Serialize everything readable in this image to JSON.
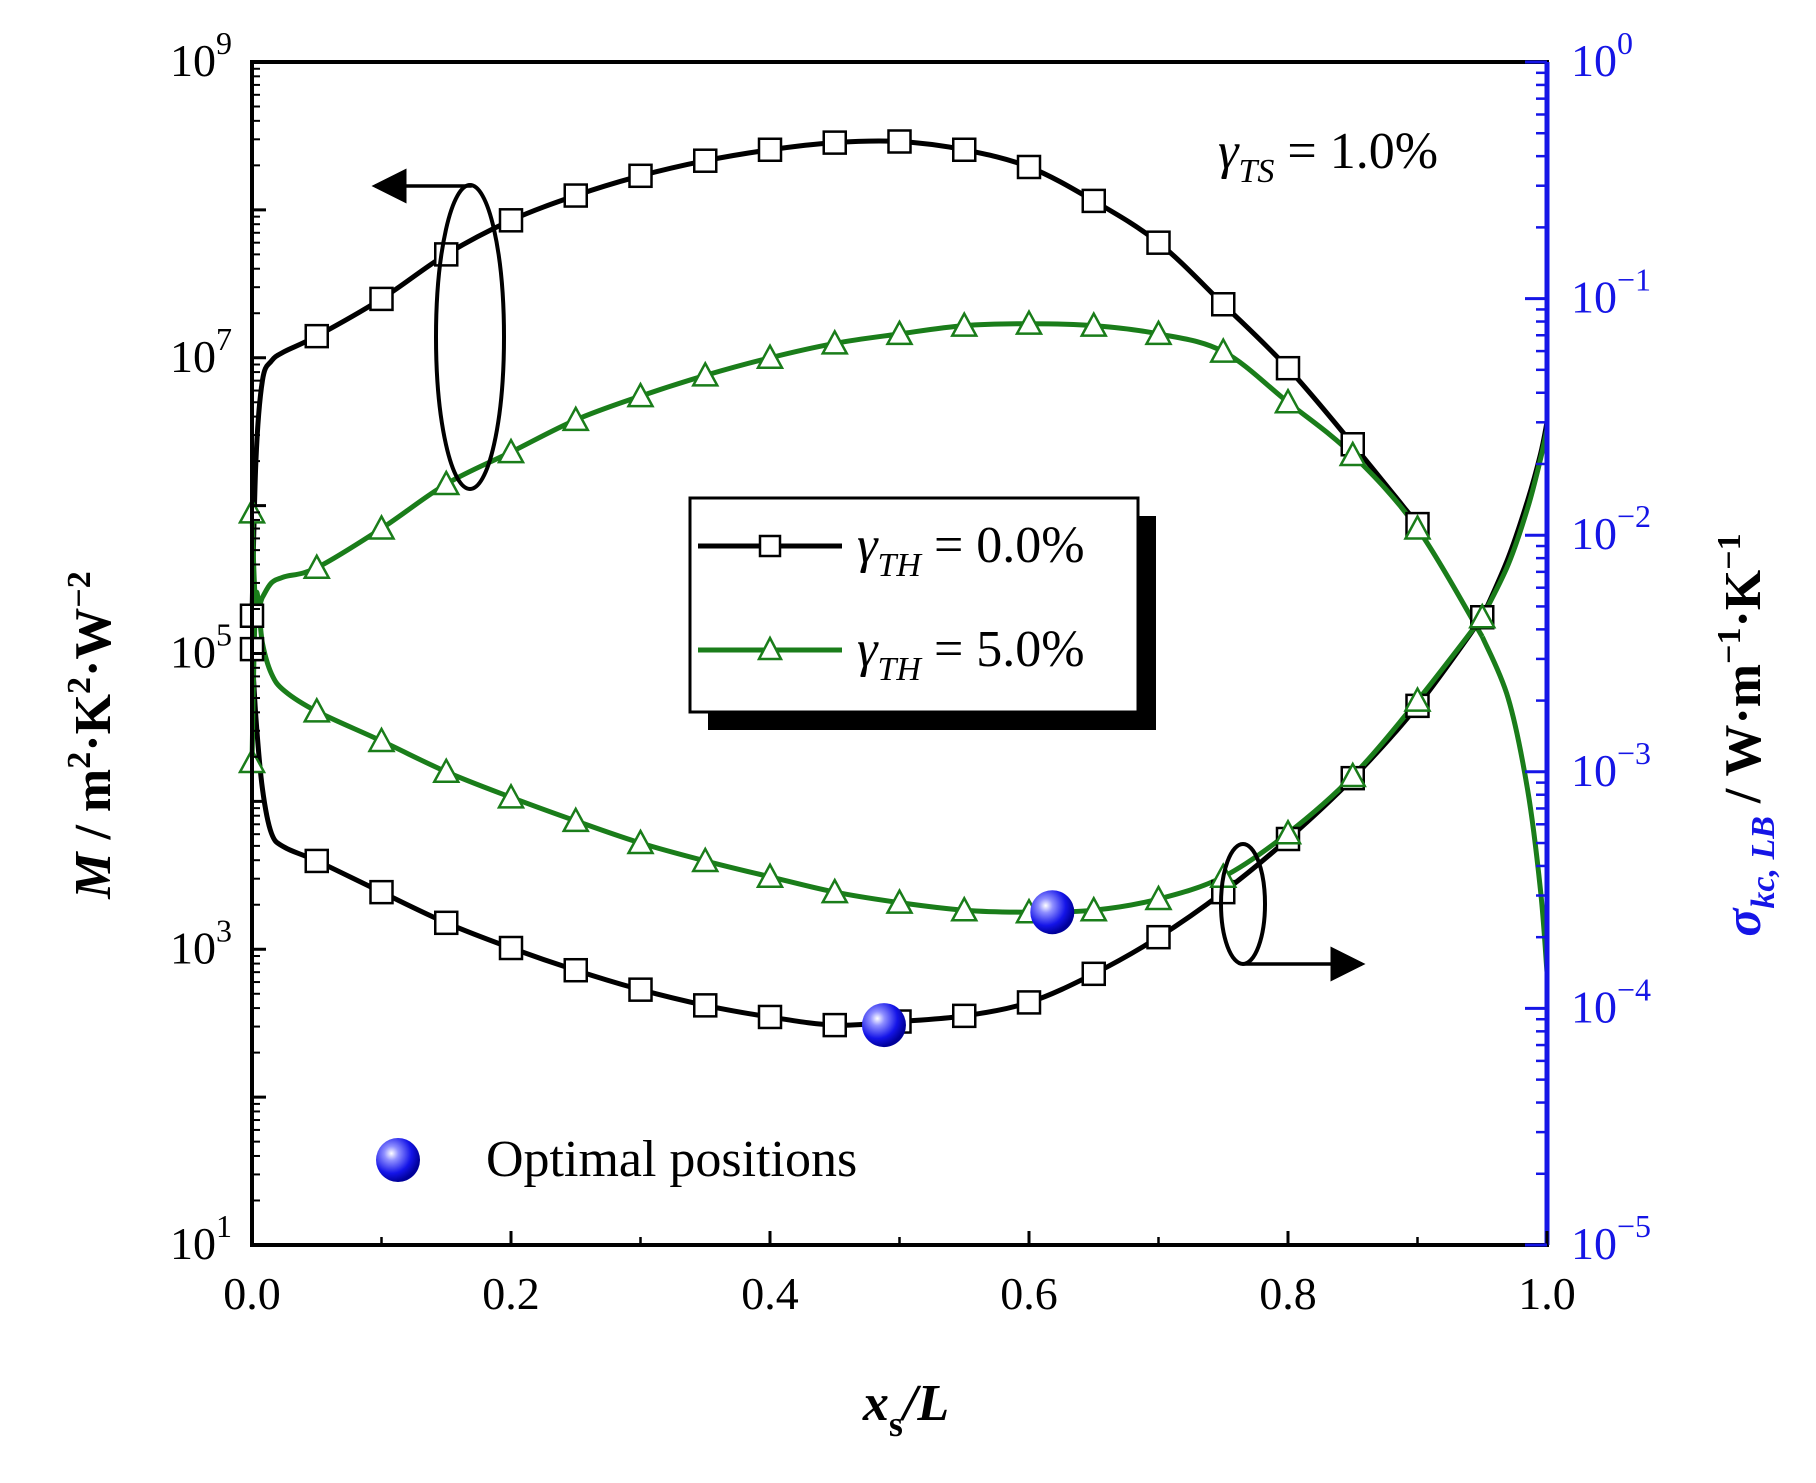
{
  "chart_data": {
    "type": "line",
    "x_title": {
      "var": "x",
      "sub": "s",
      "tail": "/L"
    },
    "y_left_title": {
      "var": "M",
      "unit": " / m",
      "sup1": "2",
      "mid": "·K",
      "sup2": "2",
      "mid2": "·W",
      "sup3": "−2"
    },
    "y_right_title": {
      "var": "σ",
      "sub": "kc, LB",
      "unit": " / W·m",
      "sup1": "−1",
      "mid": "·K",
      "sup2": "−1"
    },
    "xlim": [
      0.0,
      1.0
    ],
    "ylim_left": [
      10,
      1000000000
    ],
    "ylim_right": [
      1e-05,
      1
    ],
    "x_ticks": [
      {
        "v": 0.0,
        "label": "0.0"
      },
      {
        "v": 0.2,
        "label": "0.2"
      },
      {
        "v": 0.4,
        "label": "0.4"
      },
      {
        "v": 0.6,
        "label": "0.6"
      },
      {
        "v": 0.8,
        "label": "0.8"
      },
      {
        "v": 1.0,
        "label": "1.0"
      }
    ],
    "y_left_ticks": [
      {
        "v": 10,
        "base": "10",
        "exp": "1"
      },
      {
        "v": 1000,
        "base": "10",
        "exp": "3"
      },
      {
        "v": 100000,
        "base": "10",
        "exp": "5"
      },
      {
        "v": 10000000,
        "base": "10",
        "exp": "7"
      },
      {
        "v": 1000000000,
        "base": "10",
        "exp": "9"
      }
    ],
    "y_right_ticks": [
      {
        "v": 1e-05,
        "base": "10",
        "exp": "−5"
      },
      {
        "v": 0.0001,
        "base": "10",
        "exp": "−4"
      },
      {
        "v": 0.001,
        "base": "10",
        "exp": "−3"
      },
      {
        "v": 0.01,
        "base": "10",
        "exp": "−2"
      },
      {
        "v": 0.1,
        "base": "10",
        "exp": "−1"
      },
      {
        "v": 1,
        "base": "10",
        "exp": "0"
      }
    ],
    "annotation": {
      "var": "γ",
      "sub": "TS",
      "text": " = 1.0%"
    },
    "series": [
      {
        "name": "γTH = 0.0%",
        "legend_var": "γ",
        "legend_sub": "TH",
        "legend_text": " = 0.0%",
        "axis": "left",
        "color": "#000000",
        "marker": "square",
        "x": [
          0.0,
          0.003,
          0.008,
          0.015,
          0.025,
          0.05,
          0.1,
          0.15,
          0.2,
          0.25,
          0.3,
          0.35,
          0.4,
          0.45,
          0.5,
          0.55,
          0.6,
          0.65,
          0.7,
          0.75,
          0.8,
          0.85,
          0.9
        ],
        "y": [
          180000,
          2000000,
          7000000,
          9500000,
          11000000,
          14000000,
          25000000,
          50000000,
          85000000,
          125000000,
          170000000,
          215000000,
          255000000,
          285000000,
          290000000,
          255000000,
          195000000,
          115000000,
          60000000,
          23000000,
          8500000,
          2600000,
          750000
        ],
        "marker_x": [
          0.0,
          0.05,
          0.1,
          0.15,
          0.2,
          0.25,
          0.3,
          0.35,
          0.4,
          0.45,
          0.5,
          0.55,
          0.6,
          0.65,
          0.7,
          0.75,
          0.8,
          0.85,
          0.9
        ]
      },
      {
        "name": "γTH = 5.0%",
        "axis": "left",
        "color": "#1a7d1a",
        "marker": "triangle",
        "legend": false,
        "x": [
          0.0,
          0.003,
          0.008,
          0.015,
          0.025,
          0.05,
          0.1,
          0.15,
          0.2,
          0.25,
          0.3,
          0.35,
          0.4,
          0.45,
          0.5,
          0.55,
          0.6,
          0.65,
          0.7,
          0.75,
          0.8,
          0.85,
          0.9,
          0.95
        ],
        "y": [
          900000,
          200000,
          240000,
          300000,
          330000,
          380000,
          700000,
          1400000,
          2300000,
          3800000,
          5500000,
          7600000,
          10000000,
          12500000,
          14500000,
          16500000,
          17000000,
          16500000,
          14500000,
          11000000,
          5000000,
          2200000,
          700000,
          130000
        ],
        "marker_x": [
          0.0,
          0.05,
          0.1,
          0.15,
          0.2,
          0.25,
          0.3,
          0.35,
          0.4,
          0.45,
          0.5,
          0.55,
          0.6,
          0.65,
          0.7,
          0.75,
          0.8,
          0.85,
          0.9
        ]
      },
      {
        "name": "σ γTH = 0.0%",
        "axis": "right",
        "color": "#000000",
        "marker": "square",
        "legend": false,
        "x": [
          0.0,
          0.003,
          0.008,
          0.015,
          0.025,
          0.05,
          0.1,
          0.15,
          0.2,
          0.25,
          0.3,
          0.35,
          0.4,
          0.45,
          0.5,
          0.55,
          0.6,
          0.65,
          0.7,
          0.75,
          0.8,
          0.85,
          0.9,
          0.95
        ],
        "y": [
          0.0033,
          0.0017,
          0.00085,
          0.00055,
          0.00048,
          0.00042,
          0.00031,
          0.00023,
          0.00018,
          0.000145,
          0.00012,
          0.000103,
          9.2e-05,
          8.5e-05,
          8.8e-05,
          9.3e-05,
          0.000106,
          0.00014,
          0.0002,
          0.00031,
          0.00052,
          0.00094,
          0.0019,
          0.0045
        ],
        "marker_x": [
          0.0,
          0.05,
          0.1,
          0.15,
          0.2,
          0.25,
          0.3,
          0.35,
          0.4,
          0.45,
          0.5,
          0.55,
          0.6,
          0.65,
          0.7,
          0.75,
          0.8,
          0.85,
          0.9,
          0.95
        ]
      },
      {
        "name": "σ γTH = 5.0%",
        "legend_var": "γ",
        "legend_sub": "TH",
        "legend_text": " = 5.0%",
        "axis": "right",
        "color": "#1a7d1a",
        "marker": "triangle",
        "x": [
          0.0,
          0.003,
          0.008,
          0.015,
          0.025,
          0.05,
          0.1,
          0.15,
          0.2,
          0.25,
          0.3,
          0.35,
          0.4,
          0.45,
          0.5,
          0.55,
          0.6,
          0.65,
          0.7,
          0.75,
          0.8,
          0.85,
          0.9,
          0.95
        ],
        "y": [
          0.0011,
          0.0055,
          0.0035,
          0.0026,
          0.0022,
          0.0018,
          0.00135,
          0.001,
          0.00078,
          0.00062,
          0.0005,
          0.00042,
          0.00036,
          0.00031,
          0.00028,
          0.00026,
          0.000255,
          0.00026,
          0.00029,
          0.00036,
          0.00055,
          0.00096,
          0.002,
          0.0045
        ],
        "marker_x": [
          0.0,
          0.05,
          0.1,
          0.15,
          0.2,
          0.25,
          0.3,
          0.35,
          0.4,
          0.45,
          0.5,
          0.55,
          0.6,
          0.65,
          0.7,
          0.75,
          0.8,
          0.85,
          0.9,
          0.95
        ]
      }
    ],
    "tails": [
      {
        "name": "σ γTH = 0.0% tail",
        "axis": "right",
        "color": "#000000",
        "x": [
          0.95,
          0.97,
          0.985,
          0.995,
          1.0
        ],
        "y": [
          0.0045,
          0.008,
          0.014,
          0.022,
          0.03
        ]
      },
      {
        "name": "σ γTH = 5.0% tail",
        "axis": "right",
        "color": "#1a7d1a",
        "x": [
          0.95,
          0.97,
          0.985,
          0.995,
          1.0
        ],
        "y": [
          0.0045,
          0.0075,
          0.013,
          0.021,
          0.028
        ]
      },
      {
        "name": "M γTH = 5.0% tail",
        "axis": "left",
        "color": "#1a7d1a",
        "x": [
          0.95,
          0.97,
          0.985,
          0.995,
          1.0
        ],
        "y": [
          130000,
          50000,
          12000,
          2500,
          700
        ]
      }
    ],
    "optimal_positions": {
      "label": "Optimal positions",
      "points": [
        {
          "axis": "right",
          "x": 0.488,
          "y": 8.5e-05
        },
        {
          "axis": "right",
          "x": 0.618,
          "y": 0.000255
        }
      ]
    }
  }
}
